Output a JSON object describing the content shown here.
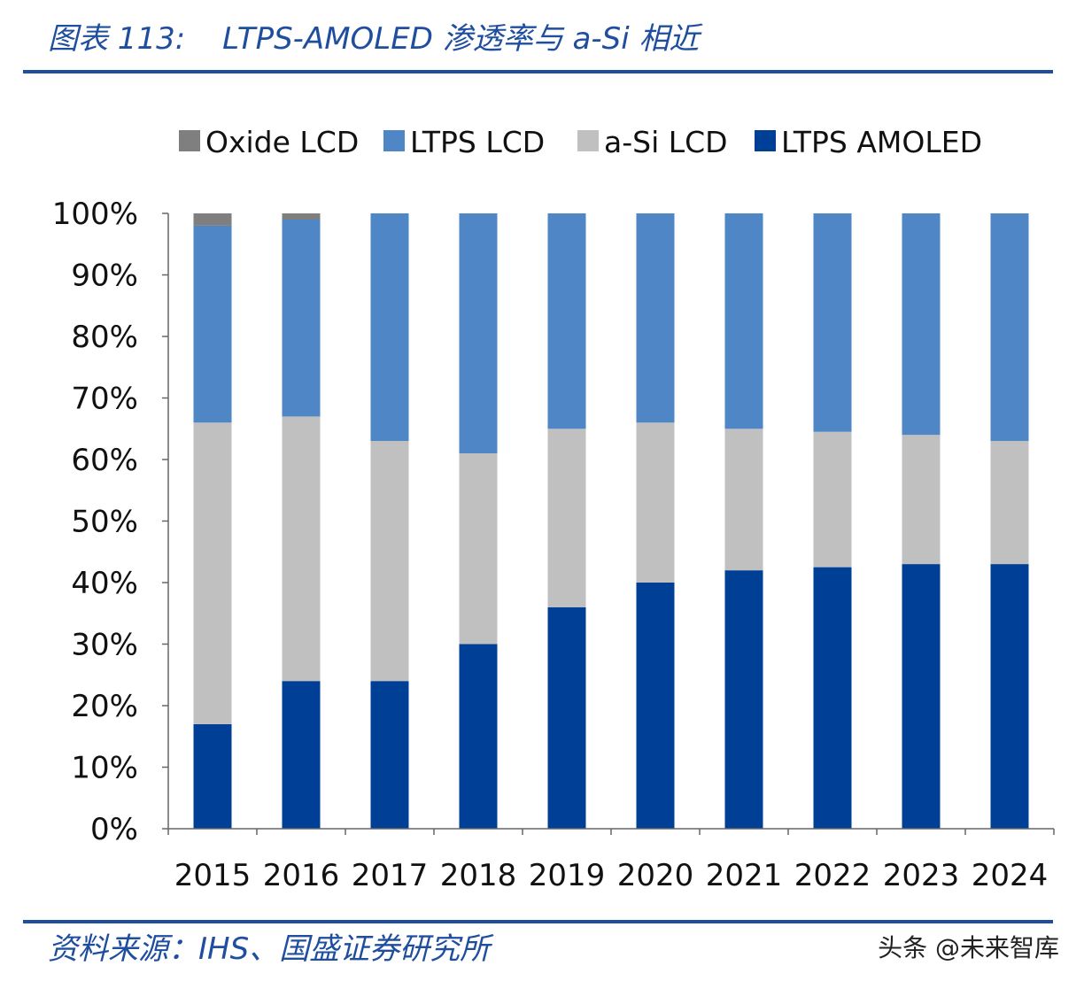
{
  "header": {
    "figure_number": "图表 113:",
    "title": "LTPS-AMOLED 渗透率与 a-Si 相近"
  },
  "footer": {
    "source": "资料来源：IHS、国盛证券研究所",
    "watermark": "头条 @未来智库"
  },
  "chart_data": {
    "type": "bar",
    "stacked": true,
    "categories": [
      "2015",
      "2016",
      "2017",
      "2018",
      "2019",
      "2020",
      "2021",
      "2022",
      "2023",
      "2024"
    ],
    "series": [
      {
        "name": "LTPS AMOLED",
        "color": "#003f96",
        "values": [
          17,
          24,
          24,
          30,
          36,
          40,
          42,
          42.5,
          43,
          43
        ]
      },
      {
        "name": "a-Si LCD",
        "color": "#c0c0c0",
        "values": [
          49,
          43,
          39,
          31,
          29,
          26,
          23,
          22,
          21,
          20
        ]
      },
      {
        "name": "LTPS LCD",
        "color": "#4f86c6",
        "values": [
          32,
          32,
          37,
          39,
          35,
          34,
          35,
          35.5,
          36,
          37
        ]
      },
      {
        "name": "Oxide LCD",
        "color": "#7f7f7f",
        "values": [
          2,
          1,
          0,
          0,
          0,
          0,
          0,
          0,
          0,
          0
        ]
      }
    ],
    "legend_order": [
      "Oxide LCD",
      "LTPS LCD",
      "a-Si LCD",
      "LTPS AMOLED"
    ],
    "y_ticks": [
      "0%",
      "10%",
      "20%",
      "30%",
      "40%",
      "50%",
      "60%",
      "70%",
      "80%",
      "90%",
      "100%"
    ],
    "ylim": [
      0,
      100
    ],
    "legend_position": "top",
    "grid": false
  }
}
